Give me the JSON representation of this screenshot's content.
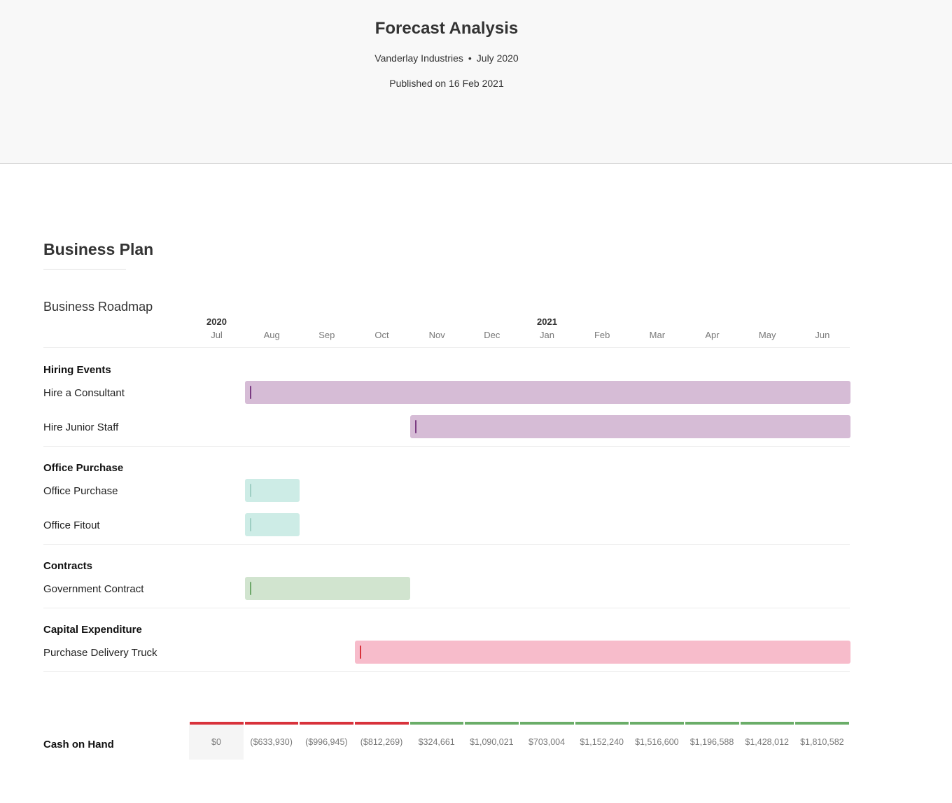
{
  "header": {
    "title": "Forecast Analysis",
    "company": "Vanderlay Industries",
    "separator": "•",
    "period": "July 2020",
    "published": "Published on 16 Feb 2021"
  },
  "section": {
    "title": "Business Plan"
  },
  "colors": {
    "hiring_fill": "#d6bcd6",
    "hiring_tick": "#7b3b82",
    "office_fill": "#cdece6",
    "office_tick": "#9fcfc4",
    "contracts_fill": "#d1e4cf",
    "contracts_tick": "#6ea86a",
    "capex_fill": "#f7bccb",
    "capex_tick": "#d8323b",
    "cash_negative": "#d8323b",
    "cash_positive": "#6aad68"
  },
  "chart_data": {
    "type": "gantt",
    "title": "Business Roadmap",
    "years": [
      {
        "label": "2020",
        "month_index": 0
      },
      {
        "label": "2021",
        "month_index": 6
      }
    ],
    "months": [
      "Jul",
      "Aug",
      "Sep",
      "Oct",
      "Nov",
      "Dec",
      "Jan",
      "Feb",
      "Mar",
      "Apr",
      "May",
      "Jun"
    ],
    "groups": [
      {
        "name": "Hiring Events",
        "color_key": "hiring",
        "items": [
          {
            "label": "Hire a Consultant",
            "start": "Aug",
            "end": "Jun"
          },
          {
            "label": "Hire Junior Staff",
            "start": "Nov",
            "end": "Jun"
          }
        ]
      },
      {
        "name": "Office Purchase",
        "color_key": "office",
        "items": [
          {
            "label": "Office Purchase",
            "start": "Aug",
            "end": "Aug"
          },
          {
            "label": "Office Fitout",
            "start": "Aug",
            "end": "Aug"
          }
        ]
      },
      {
        "name": "Contracts",
        "color_key": "contracts",
        "items": [
          {
            "label": "Government Contract",
            "start": "Aug",
            "end": "Oct"
          }
        ]
      },
      {
        "name": "Capital Expenditure",
        "color_key": "capex",
        "items": [
          {
            "label": "Purchase Delivery Truck",
            "start": "Oct",
            "end": "Jun"
          }
        ]
      }
    ],
    "cash_on_hand": {
      "label": "Cash on Hand",
      "values": [
        0,
        -633930,
        -996945,
        -812269,
        324661,
        1090021,
        703004,
        1152240,
        1516600,
        1196588,
        1428012,
        1810582
      ],
      "display": [
        "$0",
        "($633,930)",
        "($996,945)",
        "($812,269)",
        "$324,661",
        "$1,090,021",
        "$703,004",
        "$1,152,240",
        "$1,516,600",
        "$1,196,588",
        "$1,428,012",
        "$1,810,582"
      ]
    }
  }
}
